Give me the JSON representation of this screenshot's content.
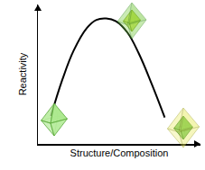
{
  "chart_data": {
    "type": "line",
    "x_label": "Structure/Composition",
    "y_label": "Reactivity",
    "x": [
      0.8,
      1.5,
      2.2,
      3.0,
      3.6,
      4.2,
      4.8,
      5.5,
      6.2,
      7.0,
      7.8
    ],
    "values": [
      2.0,
      4.6,
      6.7,
      8.3,
      8.9,
      9.0,
      8.8,
      8.0,
      6.5,
      4.3,
      1.9
    ],
    "color": "#000000",
    "line_style": "solid",
    "xlim": [
      0,
      10
    ],
    "ylim": [
      0,
      10
    ],
    "xticks": [],
    "yticks": [],
    "tick_labels": false,
    "grid": false
  }
}
